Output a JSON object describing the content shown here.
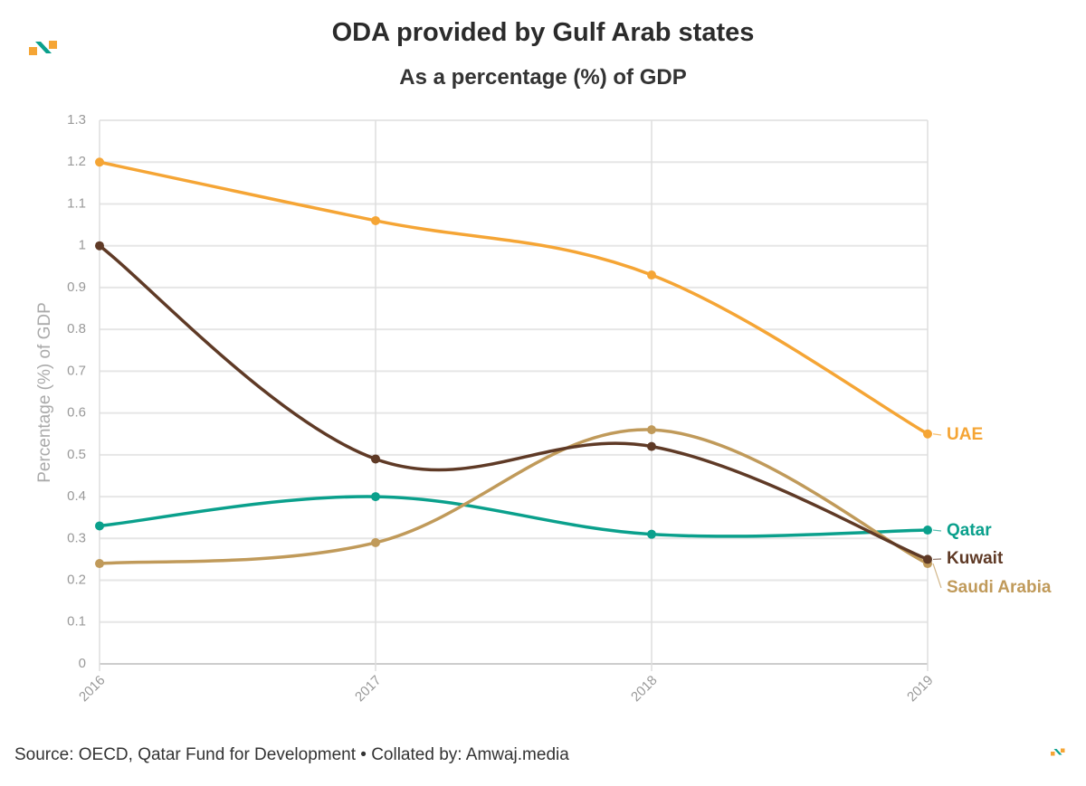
{
  "header": {
    "title": "ODA provided by Gulf Arab states",
    "subtitle": "As a percentage (%) of GDP"
  },
  "footer": {
    "source": "Source: OECD, Qatar Fund for Development • Collated by: Amwaj.media"
  },
  "colors": {
    "UAE": "#f5a535",
    "Kuwait": "#5f3a26",
    "Saudi Arabia": "#c09a5a",
    "Qatar": "#0aa08c",
    "logo_orange": "#f5a535",
    "logo_teal": "#0aa08c"
  },
  "chart_data": {
    "type": "line",
    "title": "ODA provided by Gulf Arab states",
    "subtitle": "As a percentage (%) of GDP",
    "xlabel": "",
    "ylabel": "Percentage (%) of GDP",
    "categories": [
      "2016",
      "2017",
      "2018",
      "2019"
    ],
    "ylim": [
      0,
      1.3
    ],
    "yticks": [
      0,
      0.1,
      0.2,
      0.3,
      0.4,
      0.5,
      0.6,
      0.7,
      0.8,
      0.9,
      1,
      1.1,
      1.2,
      1.3
    ],
    "ytick_labels": [
      "0",
      "0.1",
      "0.2",
      "0.3",
      "0.4",
      "0.5",
      "0.6",
      "0.7",
      "0.8",
      "0.9",
      "1",
      "1.1",
      "1.2",
      "1.3"
    ],
    "grid": true,
    "legend": "direct labels at right end of lines",
    "series": [
      {
        "name": "UAE",
        "label": "UAE",
        "values": [
          1.2,
          1.06,
          0.93,
          0.55
        ]
      },
      {
        "name": "Qatar",
        "label": "Qatar",
        "values": [
          0.33,
          0.4,
          0.31,
          0.32
        ]
      },
      {
        "name": "Saudi Arabia",
        "label": "Saudi Arabia",
        "values": [
          0.24,
          0.29,
          0.56,
          0.24
        ]
      },
      {
        "name": "Kuwait",
        "label": "Kuwait",
        "values": [
          1.0,
          0.49,
          0.52,
          0.25
        ]
      }
    ]
  }
}
